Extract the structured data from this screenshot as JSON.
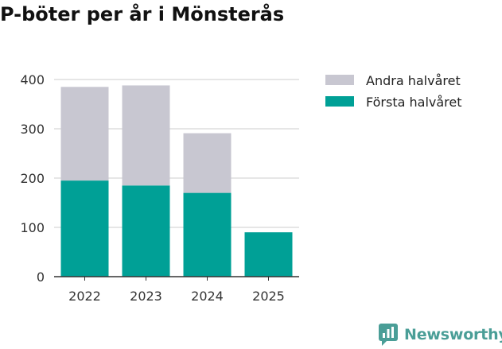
{
  "chart_data": {
    "type": "bar",
    "stacked": true,
    "title": "P-böter per år i Mönsterås",
    "categories": [
      "2022",
      "2023",
      "2024",
      "2025"
    ],
    "series": [
      {
        "name": "Första halvåret",
        "color": "#00a096",
        "values": [
          195,
          185,
          170,
          90
        ]
      },
      {
        "name": "Andra halvåret",
        "color": "#c8c7d1",
        "values": [
          190,
          203,
          121,
          0
        ]
      }
    ],
    "legend_order": [
      "Andra halvåret",
      "Första halvåret"
    ],
    "ylim": [
      0,
      400
    ],
    "yticks": [
      0,
      100,
      200,
      300,
      400
    ],
    "grid": true,
    "xlabel": "",
    "ylabel": ""
  },
  "brand": {
    "name": "Newsworthy",
    "color": "#4a9e97"
  }
}
